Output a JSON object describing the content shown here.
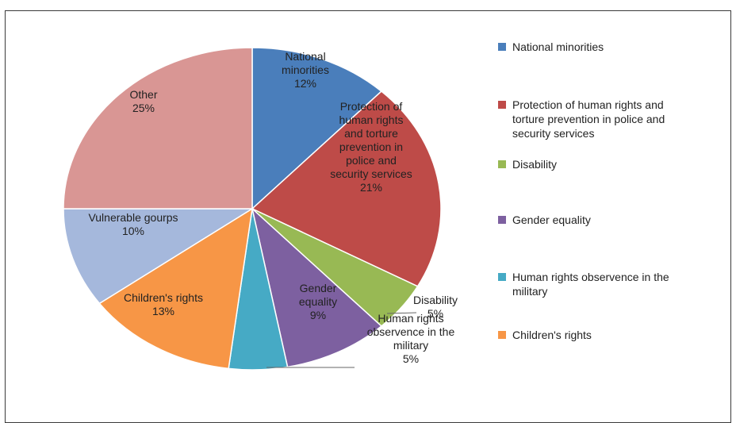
{
  "chart_data": {
    "type": "pie",
    "slices": [
      {
        "name": "National minorities",
        "label_lines": [
          "National",
          "minorities",
          "12%"
        ],
        "value": 12,
        "color": "#4a7ebb"
      },
      {
        "name": "Protection of human rights and torture prevention in police and security services",
        "label_lines": [
          "Protection of",
          "human rights",
          "and torture",
          "prevention in",
          "police and",
          "security services",
          "21%"
        ],
        "value": 21,
        "color": "#be4b48"
      },
      {
        "name": "Disability",
        "label_lines": [
          "Disability",
          "5%"
        ],
        "value": 5,
        "color": "#98b954"
      },
      {
        "name": "Gender equality",
        "label_lines": [
          "Gender",
          "equality",
          "9%"
        ],
        "value": 9,
        "color": "#7d60a0"
      },
      {
        "name": "Human rights observence in the military",
        "label_lines": [
          "Human rights",
          "observence in the",
          "military",
          "5%"
        ],
        "value": 5,
        "color": "#46aac5"
      },
      {
        "name": "Children's rights",
        "label_lines": [
          "Children's rights",
          "13%"
        ],
        "value": 13,
        "color": "#f79646"
      },
      {
        "name": "Vulnerable gourps",
        "label_lines": [
          "Vulnerable gourps",
          "10%"
        ],
        "value": 10,
        "color": "#a5b8dc"
      },
      {
        "name": "Other",
        "label_lines": [
          "Other",
          "25%"
        ],
        "value": 25,
        "color": "#d99694"
      }
    ],
    "legend": {
      "placement": "right",
      "entries": [
        {
          "text_lines": [
            "National minorities"
          ],
          "color": "#4a7ebb"
        },
        {
          "text_lines": [
            "Protection of human rights and",
            "torture prevention in police and",
            "security services"
          ],
          "color": "#be4b48"
        },
        {
          "text_lines": [
            "Disability"
          ],
          "color": "#98b954"
        },
        {
          "text_lines": [
            "Gender equality"
          ],
          "color": "#7d60a0"
        },
        {
          "text_lines": [
            "Human rights observence in the",
            "military"
          ],
          "color": "#46aac5"
        },
        {
          "text_lines": [
            "Children's rights"
          ],
          "color": "#f79646"
        }
      ]
    }
  }
}
